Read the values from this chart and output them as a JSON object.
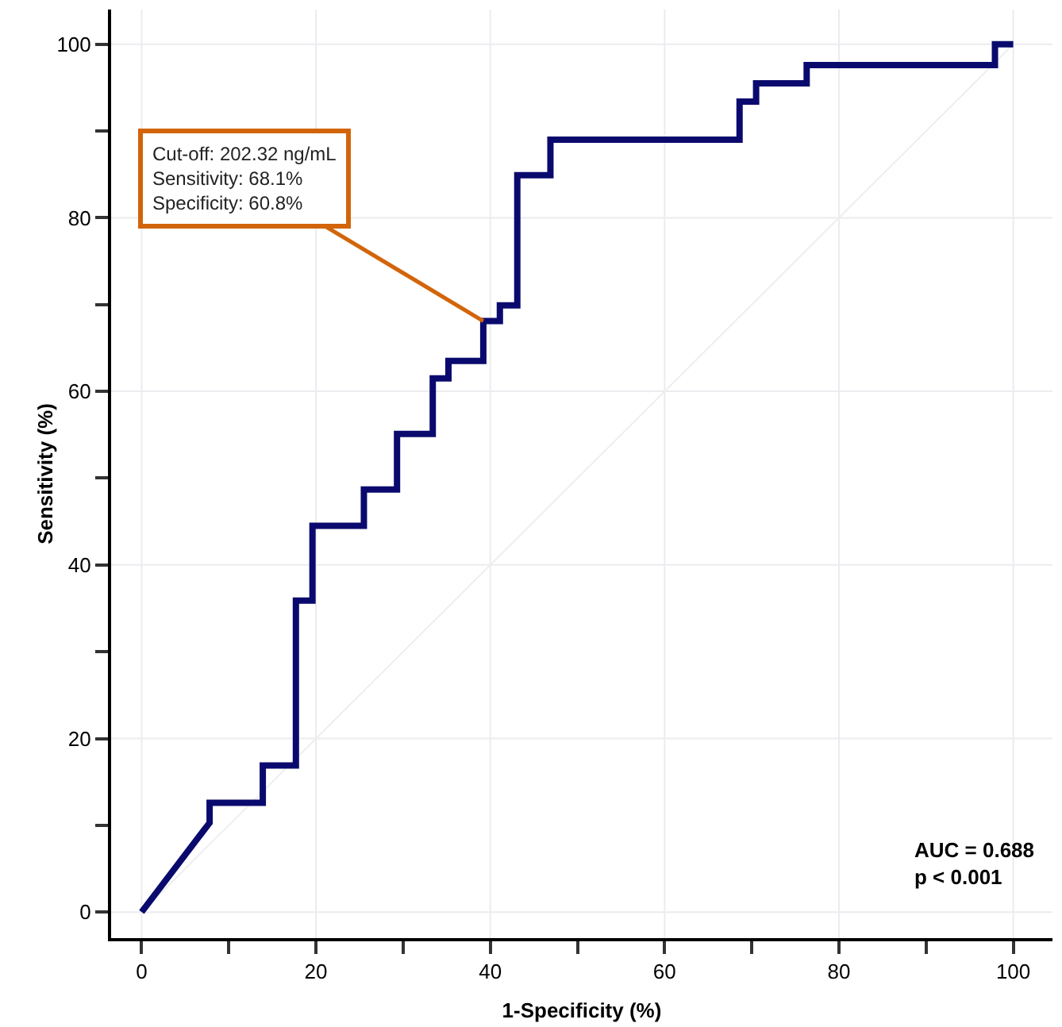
{
  "chart_data": {
    "type": "line",
    "xlabel": "1-Specificity (%)",
    "ylabel": "Sensitivity (%)",
    "xlim": [
      -3.5,
      104.5
    ],
    "ylim": [
      -3,
      104
    ],
    "xticks": [
      0,
      {
        "value": 10,
        "label": null
      },
      20,
      {
        "value": 30,
        "label": null
      },
      40,
      {
        "value": 50,
        "label": null
      },
      60,
      {
        "value": 70,
        "label": null
      },
      80,
      {
        "value": 90,
        "label": null
      },
      100
    ],
    "yticks": [
      0,
      {
        "value": 10,
        "label": null
      },
      20,
      {
        "value": 30,
        "label": null
      },
      40,
      {
        "value": 50,
        "label": null
      },
      60,
      {
        "value": 70,
        "label": null
      },
      80,
      {
        "value": 90,
        "label": null
      },
      100
    ],
    "grid": true,
    "line_style": "solid",
    "marker": "none",
    "series": [
      {
        "color": "#eeeeee",
        "x": [
          0,
          100
        ],
        "values": [
          0,
          100
        ]
      },
      {
        "color": "#0a0a6e",
        "x": [
          0,
          7.8,
          7.8,
          13.9,
          13.9,
          17.7,
          17.7,
          19.6,
          19.6,
          25.5,
          25.5,
          29.3,
          29.3,
          33.4,
          33.4,
          35.2,
          35.2,
          39.2,
          39.2,
          41.1,
          41.1,
          43.1,
          43.1,
          46.9,
          46.9,
          68.6,
          68.6,
          70.5,
          70.5,
          76.3,
          76.3,
          97.9,
          97.9,
          100
        ],
        "values": [
          0,
          10.3,
          12.6,
          12.6,
          16.9,
          16.9,
          35.9,
          35.9,
          44.5,
          44.5,
          48.7,
          48.7,
          55.1,
          55.1,
          61.5,
          61.5,
          63.5,
          63.5,
          68.1,
          68.1,
          69.9,
          69.9,
          84.9,
          84.9,
          89.0,
          89.0,
          93.4,
          93.4,
          95.5,
          95.5,
          97.6,
          97.6,
          100,
          100
        ]
      }
    ],
    "annotations": [
      {
        "text": "Cut-off: 202.32 ng/mL\nSensitivity: 68.1%\nSpecificity: 60.8%",
        "x": 39.2,
        "y": 68.1
      },
      "AUC = 0.688\np < 0.001"
    ]
  }
}
